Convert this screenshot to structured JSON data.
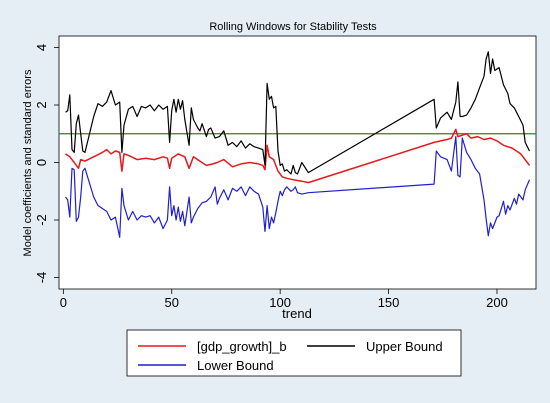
{
  "chart_data": {
    "type": "line",
    "title": "Rolling Windows for Stability Tests",
    "xlabel": "trend",
    "ylabel": "Model coefficients and standard errors",
    "xlim": [
      -2,
      218
    ],
    "ylim": [
      -4.4,
      4.4
    ],
    "xticks": [
      0,
      50,
      100,
      150,
      200
    ],
    "yticks": [
      -4,
      -2,
      0,
      2,
      4
    ],
    "grid": false,
    "legend_position": "bottom",
    "colors": {
      "background": "#e6eef5",
      "plot_background": "#ffffff",
      "reference_line": "#2e7d32"
    },
    "reference_line": {
      "y": 1
    },
    "series": [
      {
        "name": "[gdp_growth]_b",
        "color": "#e41a1c",
        "points": [
          [
            1,
            0.3
          ],
          [
            3,
            0.2
          ],
          [
            5,
            0.0
          ],
          [
            7,
            -0.2
          ],
          [
            8,
            0.1
          ],
          [
            10,
            0.05
          ],
          [
            14,
            0.2
          ],
          [
            18,
            0.35
          ],
          [
            20,
            0.45
          ],
          [
            22,
            0.3
          ],
          [
            24,
            0.4
          ],
          [
            26,
            0.35
          ],
          [
            27,
            -0.3
          ],
          [
            28,
            0.3
          ],
          [
            30,
            0.25
          ],
          [
            34,
            0.1
          ],
          [
            38,
            0.15
          ],
          [
            42,
            0.1
          ],
          [
            46,
            0.2
          ],
          [
            48,
            0.15
          ],
          [
            49,
            -0.2
          ],
          [
            50,
            0.15
          ],
          [
            53,
            0.3
          ],
          [
            56,
            0.2
          ],
          [
            58,
            -0.2
          ],
          [
            60,
            0.2
          ],
          [
            63,
            0.05
          ],
          [
            66,
            -0.1
          ],
          [
            69,
            -0.05
          ],
          [
            71,
            0.0
          ],
          [
            74,
            0.1
          ],
          [
            78,
            -0.15
          ],
          [
            82,
            -0.05
          ],
          [
            86,
            0.0
          ],
          [
            90,
            -0.05
          ],
          [
            92,
            -0.1
          ],
          [
            93,
            -0.25
          ],
          [
            94,
            0.6
          ],
          [
            95,
            0.2
          ],
          [
            97,
            0.1
          ],
          [
            99,
            -0.3
          ],
          [
            101,
            -0.5
          ],
          [
            103,
            -0.55
          ],
          [
            106,
            -0.6
          ],
          [
            110,
            -0.65
          ],
          [
            113,
            -0.7
          ],
          [
            171,
            0.7
          ],
          [
            174,
            0.75
          ],
          [
            177,
            0.8
          ],
          [
            179,
            0.85
          ],
          [
            181,
            1.15
          ],
          [
            182,
            0.9
          ],
          [
            184,
            0.95
          ],
          [
            186,
            1.0
          ],
          [
            188,
            0.85
          ],
          [
            191,
            0.9
          ],
          [
            194,
            0.8
          ],
          [
            197,
            0.85
          ],
          [
            200,
            0.75
          ],
          [
            203,
            0.6
          ],
          [
            207,
            0.5
          ],
          [
            211,
            0.3
          ],
          [
            215,
            -0.1
          ]
        ]
      },
      {
        "name": "Upper Bound",
        "color": "#000000",
        "points": [
          [
            1,
            1.75
          ],
          [
            2,
            1.8
          ],
          [
            3,
            2.35
          ],
          [
            4,
            0.45
          ],
          [
            5,
            0.35
          ],
          [
            6,
            1.35
          ],
          [
            7,
            1.65
          ],
          [
            8,
            1.0
          ],
          [
            9,
            0.4
          ],
          [
            10,
            0.35
          ],
          [
            14,
            1.6
          ],
          [
            16,
            2.05
          ],
          [
            18,
            1.95
          ],
          [
            20,
            2.1
          ],
          [
            22,
            2.5
          ],
          [
            24,
            2.0
          ],
          [
            26,
            2.1
          ],
          [
            27,
            0.35
          ],
          [
            28,
            1.3
          ],
          [
            30,
            1.85
          ],
          [
            32,
            1.95
          ],
          [
            34,
            1.6
          ],
          [
            36,
            1.95
          ],
          [
            38,
            1.9
          ],
          [
            40,
            2.0
          ],
          [
            42,
            1.8
          ],
          [
            44,
            2.0
          ],
          [
            46,
            1.85
          ],
          [
            48,
            1.95
          ],
          [
            49,
            0.7
          ],
          [
            50,
            1.8
          ],
          [
            51,
            2.2
          ],
          [
            52,
            1.75
          ],
          [
            53,
            2.2
          ],
          [
            54,
            1.85
          ],
          [
            55,
            2.15
          ],
          [
            56,
            1.5
          ],
          [
            58,
            0.6
          ],
          [
            59,
            1.9
          ],
          [
            60,
            1.5
          ],
          [
            62,
            1.2
          ],
          [
            63,
            1.1
          ],
          [
            64,
            1.35
          ],
          [
            66,
            0.9
          ],
          [
            67,
            1.15
          ],
          [
            68,
            1.2
          ],
          [
            70,
            0.85
          ],
          [
            72,
            0.9
          ],
          [
            74,
            1.1
          ],
          [
            76,
            0.6
          ],
          [
            78,
            0.7
          ],
          [
            80,
            0.55
          ],
          [
            82,
            0.75
          ],
          [
            84,
            0.5
          ],
          [
            86,
            0.65
          ],
          [
            88,
            0.55
          ],
          [
            90,
            0.5
          ],
          [
            92,
            0.45
          ],
          [
            93,
            -0.1
          ],
          [
            94,
            2.75
          ],
          [
            95,
            2.2
          ],
          [
            96,
            2.3
          ],
          [
            97,
            1.9
          ],
          [
            98,
            1.95
          ],
          [
            99,
            0.4
          ],
          [
            100,
            -0.1
          ],
          [
            101,
            -0.05
          ],
          [
            102,
            -0.3
          ],
          [
            103,
            -0.25
          ],
          [
            105,
            -0.4
          ],
          [
            106,
            -0.1
          ],
          [
            107,
            -0.35
          ],
          [
            108,
            -0.4
          ],
          [
            110,
            0.0
          ],
          [
            113,
            -0.35
          ],
          [
            171,
            2.2
          ],
          [
            172,
            1.2
          ],
          [
            174,
            1.55
          ],
          [
            177,
            1.75
          ],
          [
            179,
            1.5
          ],
          [
            181,
            2.1
          ],
          [
            182,
            2.8
          ],
          [
            183,
            1.6
          ],
          [
            184,
            1.6
          ],
          [
            186,
            1.65
          ],
          [
            188,
            1.9
          ],
          [
            190,
            2.2
          ],
          [
            192,
            2.6
          ],
          [
            194,
            3.0
          ],
          [
            195,
            3.6
          ],
          [
            196,
            3.85
          ],
          [
            197,
            3.1
          ],
          [
            198,
            3.6
          ],
          [
            199,
            3.2
          ],
          [
            201,
            3.3
          ],
          [
            203,
            2.7
          ],
          [
            205,
            2.4
          ],
          [
            206,
            2.05
          ],
          [
            208,
            1.9
          ],
          [
            210,
            1.6
          ],
          [
            212,
            1.3
          ],
          [
            213,
            0.7
          ],
          [
            215,
            0.4
          ]
        ]
      },
      {
        "name": "Lower Bound",
        "color": "#1f1fd0",
        "points": [
          [
            1,
            -1.2
          ],
          [
            2,
            -1.3
          ],
          [
            3,
            -1.9
          ],
          [
            4,
            -0.2
          ],
          [
            5,
            -0.25
          ],
          [
            6,
            -2.05
          ],
          [
            7,
            -1.9
          ],
          [
            8,
            -1.2
          ],
          [
            9,
            -0.3
          ],
          [
            10,
            -0.2
          ],
          [
            14,
            -1.2
          ],
          [
            16,
            -1.5
          ],
          [
            18,
            -1.6
          ],
          [
            20,
            -1.7
          ],
          [
            22,
            -2.0
          ],
          [
            24,
            -1.9
          ],
          [
            26,
            -2.6
          ],
          [
            27,
            -0.9
          ],
          [
            28,
            -1.5
          ],
          [
            30,
            -2.0
          ],
          [
            32,
            -1.7
          ],
          [
            34,
            -2.0
          ],
          [
            36,
            -1.85
          ],
          [
            38,
            -1.9
          ],
          [
            40,
            -1.85
          ],
          [
            42,
            -2.1
          ],
          [
            44,
            -1.9
          ],
          [
            46,
            -2.3
          ],
          [
            48,
            -2.0
          ],
          [
            49,
            -0.85
          ],
          [
            50,
            -1.85
          ],
          [
            51,
            -1.5
          ],
          [
            52,
            -2.0
          ],
          [
            53,
            -1.55
          ],
          [
            54,
            -2.05
          ],
          [
            55,
            -1.7
          ],
          [
            56,
            -2.2
          ],
          [
            58,
            -1.2
          ],
          [
            59,
            -2.1
          ],
          [
            60,
            -1.9
          ],
          [
            62,
            -1.6
          ],
          [
            64,
            -1.4
          ],
          [
            66,
            -1.35
          ],
          [
            68,
            -1.2
          ],
          [
            70,
            -0.85
          ],
          [
            71,
            -1.45
          ],
          [
            72,
            -1.25
          ],
          [
            74,
            -0.95
          ],
          [
            76,
            -1.3
          ],
          [
            78,
            -0.9
          ],
          [
            80,
            -1.0
          ],
          [
            82,
            -0.85
          ],
          [
            84,
            -1.15
          ],
          [
            86,
            -0.85
          ],
          [
            88,
            -1.0
          ],
          [
            90,
            -1.1
          ],
          [
            92,
            -1.55
          ],
          [
            93,
            -2.4
          ],
          [
            94,
            -1.5
          ],
          [
            95,
            -2.3
          ],
          [
            96,
            -1.9
          ],
          [
            97,
            -2.1
          ],
          [
            98,
            -1.75
          ],
          [
            99,
            -1.35
          ],
          [
            100,
            -1.0
          ],
          [
            101,
            -1.15
          ],
          [
            102,
            -0.95
          ],
          [
            103,
            -0.85
          ],
          [
            105,
            -1.0
          ],
          [
            106,
            -0.95
          ],
          [
            107,
            -0.85
          ],
          [
            108,
            -1.05
          ],
          [
            110,
            -1.1
          ],
          [
            113,
            -1.05
          ],
          [
            171,
            -0.75
          ],
          [
            172,
            0.4
          ],
          [
            174,
            0.2
          ],
          [
            177,
            0.1
          ],
          [
            179,
            -0.3
          ],
          [
            181,
            0.9
          ],
          [
            182,
            -0.45
          ],
          [
            183,
            -0.5
          ],
          [
            184,
            0.85
          ],
          [
            186,
            0.35
          ],
          [
            188,
            0.1
          ],
          [
            190,
            -0.2
          ],
          [
            192,
            -0.4
          ],
          [
            194,
            -1.3
          ],
          [
            195,
            -1.95
          ],
          [
            196,
            -2.55
          ],
          [
            197,
            -2.1
          ],
          [
            198,
            -2.3
          ],
          [
            200,
            -1.9
          ],
          [
            201,
            -1.85
          ],
          [
            203,
            -1.35
          ],
          [
            204,
            -1.8
          ],
          [
            205,
            -1.5
          ],
          [
            206,
            -1.65
          ],
          [
            208,
            -1.25
          ],
          [
            209,
            -1.45
          ],
          [
            210,
            -1.1
          ],
          [
            212,
            -1.3
          ],
          [
            213,
            -0.95
          ],
          [
            215,
            -0.6
          ]
        ]
      }
    ]
  }
}
